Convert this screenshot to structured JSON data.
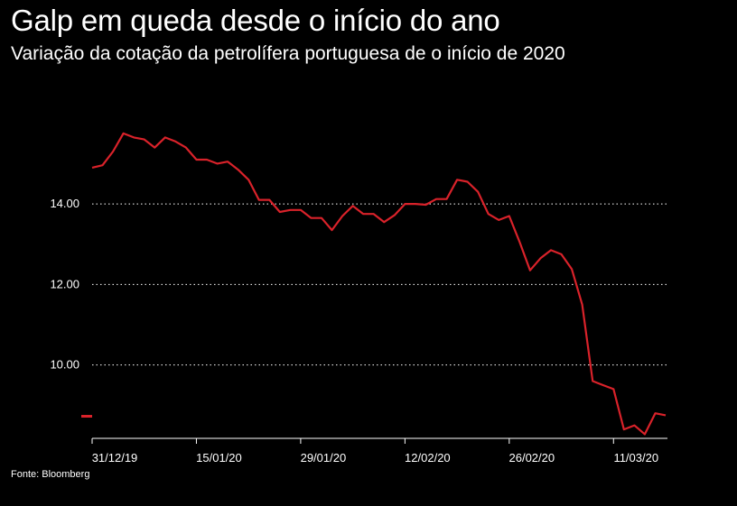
{
  "header": {
    "title": "Galp em queda desde o início do ano",
    "subtitle": "Variação da cotação da petrolífera portuguesa de o início de 2020"
  },
  "footer": {
    "source": "Fonte: Bloomberg"
  },
  "colors": {
    "line": "#d9222a",
    "grid": "#ffffff",
    "background": "#000000"
  },
  "chart_data": {
    "type": "line",
    "title": "Galp em queda desde o início do ano",
    "subtitle": "Variação da cotação da petrolífera portuguesa de o início de 2020",
    "xlabel": "",
    "ylabel": "",
    "ylim": [
      8.2,
      16.6
    ],
    "yticks": [
      10.0,
      12.0,
      14.0
    ],
    "ytick_labels": [
      "10.00",
      "12.00",
      "14.00"
    ],
    "grid": "horizontal dotted",
    "legend": "none",
    "x_tick_labels": [
      "31/12/19",
      "15/01/20",
      "29/01/20",
      "12/02/20",
      "26/02/20",
      "11/03/20"
    ],
    "x_tick_positions": [
      0,
      10,
      20,
      30,
      40,
      50
    ],
    "series": [
      {
        "values": [
          14.9,
          14.96,
          15.3,
          15.75,
          15.65,
          15.6,
          15.4,
          15.65,
          15.55,
          15.4,
          15.1,
          15.1,
          15.0,
          15.05,
          14.85,
          14.6,
          14.1,
          14.1,
          13.8,
          13.85,
          13.85,
          13.65,
          13.65,
          13.35,
          13.7,
          13.95,
          13.75,
          13.75,
          13.55,
          13.72,
          14.0,
          14.0,
          13.98,
          14.12,
          14.12,
          14.6,
          14.55,
          14.3,
          13.75,
          13.6,
          13.7,
          13.05,
          12.35,
          12.65,
          12.85,
          12.75,
          12.38,
          11.5,
          9.6,
          9.5,
          9.4,
          8.4,
          8.5,
          8.28,
          8.8,
          8.75
        ]
      }
    ]
  }
}
